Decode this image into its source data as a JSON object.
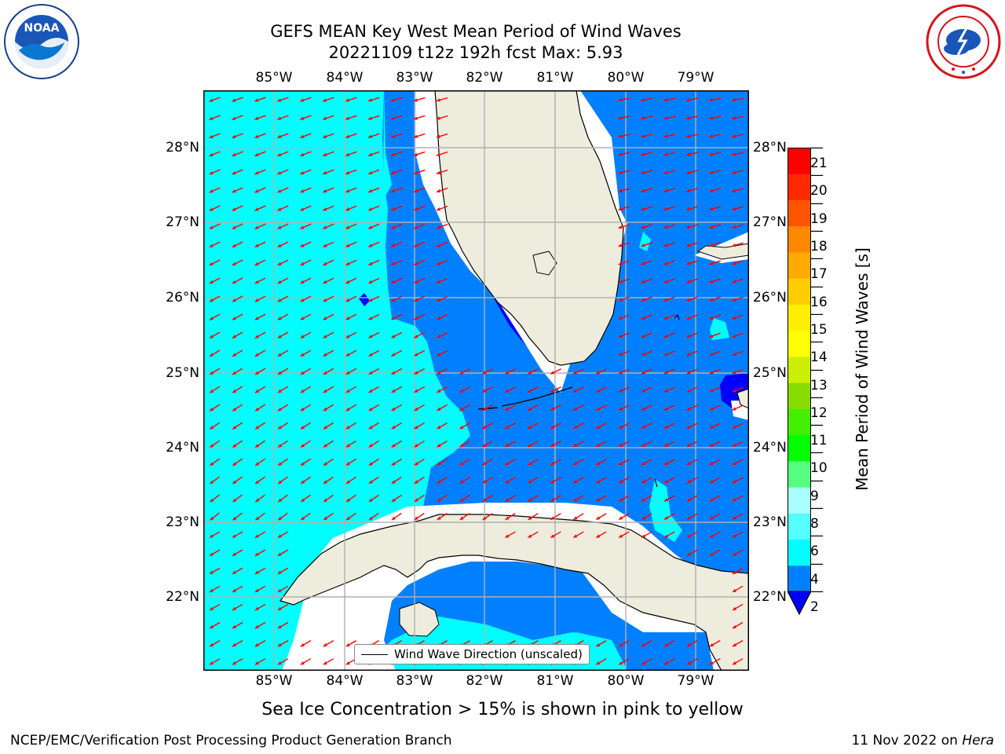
{
  "title": {
    "line1": "GEFS MEAN Key West Mean Period of Wind Waves",
    "line2": "20221109 t12z 192h fcst   Max: 5.93"
  },
  "map": {
    "lon_ticks": [
      "85°W",
      "84°W",
      "83°W",
      "82°W",
      "81°W",
      "80°W",
      "79°W"
    ],
    "lat_ticks": [
      "28°N",
      "27°N",
      "26°N",
      "25°N",
      "24°N",
      "23°N",
      "22°N"
    ],
    "lon_range": [
      -86.0,
      -78.3
    ],
    "lat_range": [
      21.0,
      28.7
    ],
    "land_color": "#eeecdc",
    "arrow_color": "#ff0000",
    "wave_colors": {
      "2-4": "#0080ff",
      "4-6": "#00ffff",
      "below-2": "#0000ff"
    },
    "legend": "Wind Wave Direction (unscaled)"
  },
  "colorbar": {
    "label": "Mean Period of Wind Waves [s]",
    "ticks": [
      "21",
      "20",
      "19",
      "18",
      "17",
      "16",
      "15",
      "14",
      "13",
      "12",
      "11",
      "10",
      "9",
      "8",
      "6",
      "4",
      "2"
    ],
    "colors": [
      "#0080ff",
      "#00ffff",
      "#55ffff",
      "#aaffff",
      "#55ff80",
      "#00ff00",
      "#44ee00",
      "#88dd00",
      "#ccee00",
      "#ffff00",
      "#ffee00",
      "#ffcc00",
      "#ffaa00",
      "#ff8800",
      "#ff5500",
      "#ff2a00",
      "#ff0000"
    ],
    "under_color": "#0000ff"
  },
  "caption": "Sea Ice Concentration > 15% is shown in pink to yellow",
  "footer": {
    "left": "NCEP/EMC/Verification Post Processing Product Generation Branch",
    "right_date": "11 Nov 2022 on",
    "right_machine": "Hera"
  },
  "logos": {
    "noaa_text": "NOAA",
    "noaa_ring": "NATIONAL OCEANIC AND ATMOSPHERIC ADMINISTRATION · U.S. DEPARTMENT OF COMMERCE",
    "nws_ring": "NATIONAL WEATHER SERVICE"
  }
}
